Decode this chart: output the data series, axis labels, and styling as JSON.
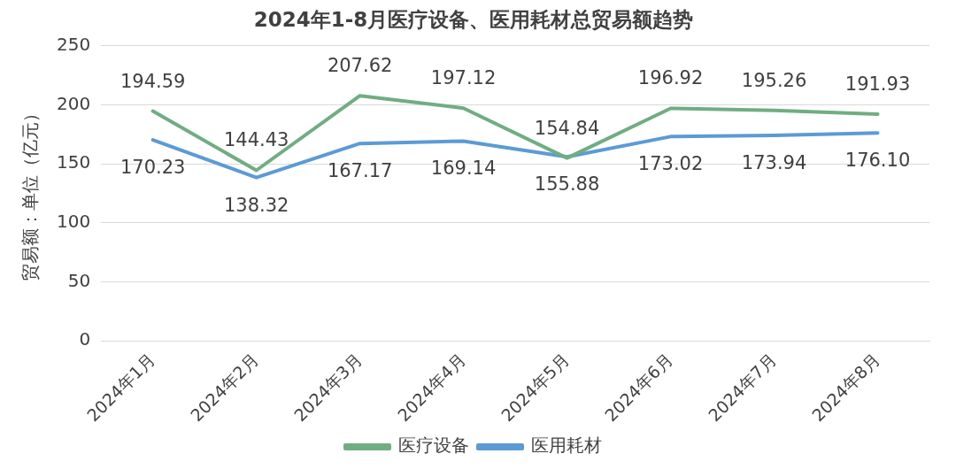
{
  "chart_data": {
    "type": "line",
    "title": "2024年1-8月医疗设备、医用耗材总贸易额趋势",
    "ylabel": "贸易额：单位（亿元）",
    "categories": [
      "2024年1月",
      "2024年2月",
      "2024年3月",
      "2024年4月",
      "2024年5月",
      "2024年6月",
      "2024年7月",
      "2024年8月"
    ],
    "series": [
      {
        "name": "医疗设备",
        "color": "#70ad82",
        "values": [
          194.59,
          144.43,
          207.62,
          197.12,
          154.84,
          196.92,
          195.26,
          191.93
        ],
        "value_labels": [
          "194.59",
          "144.43",
          "207.62",
          "197.12",
          "154.84",
          "196.92",
          "195.26",
          "191.93"
        ]
      },
      {
        "name": "医用耗材",
        "color": "#5b9bd5",
        "values": [
          170.23,
          138.32,
          167.17,
          169.14,
          155.88,
          173.02,
          173.94,
          176.1
        ],
        "value_labels": [
          "170.23",
          "138.32",
          "167.17",
          "169.14",
          "155.88",
          "173.02",
          "173.94",
          "176.10"
        ]
      }
    ],
    "ylim": [
      0,
      250
    ],
    "yticks": [
      0,
      50,
      100,
      150,
      200,
      250
    ],
    "grid": "y",
    "legend": "bottom",
    "marker": "none",
    "line_style": "solid"
  }
}
